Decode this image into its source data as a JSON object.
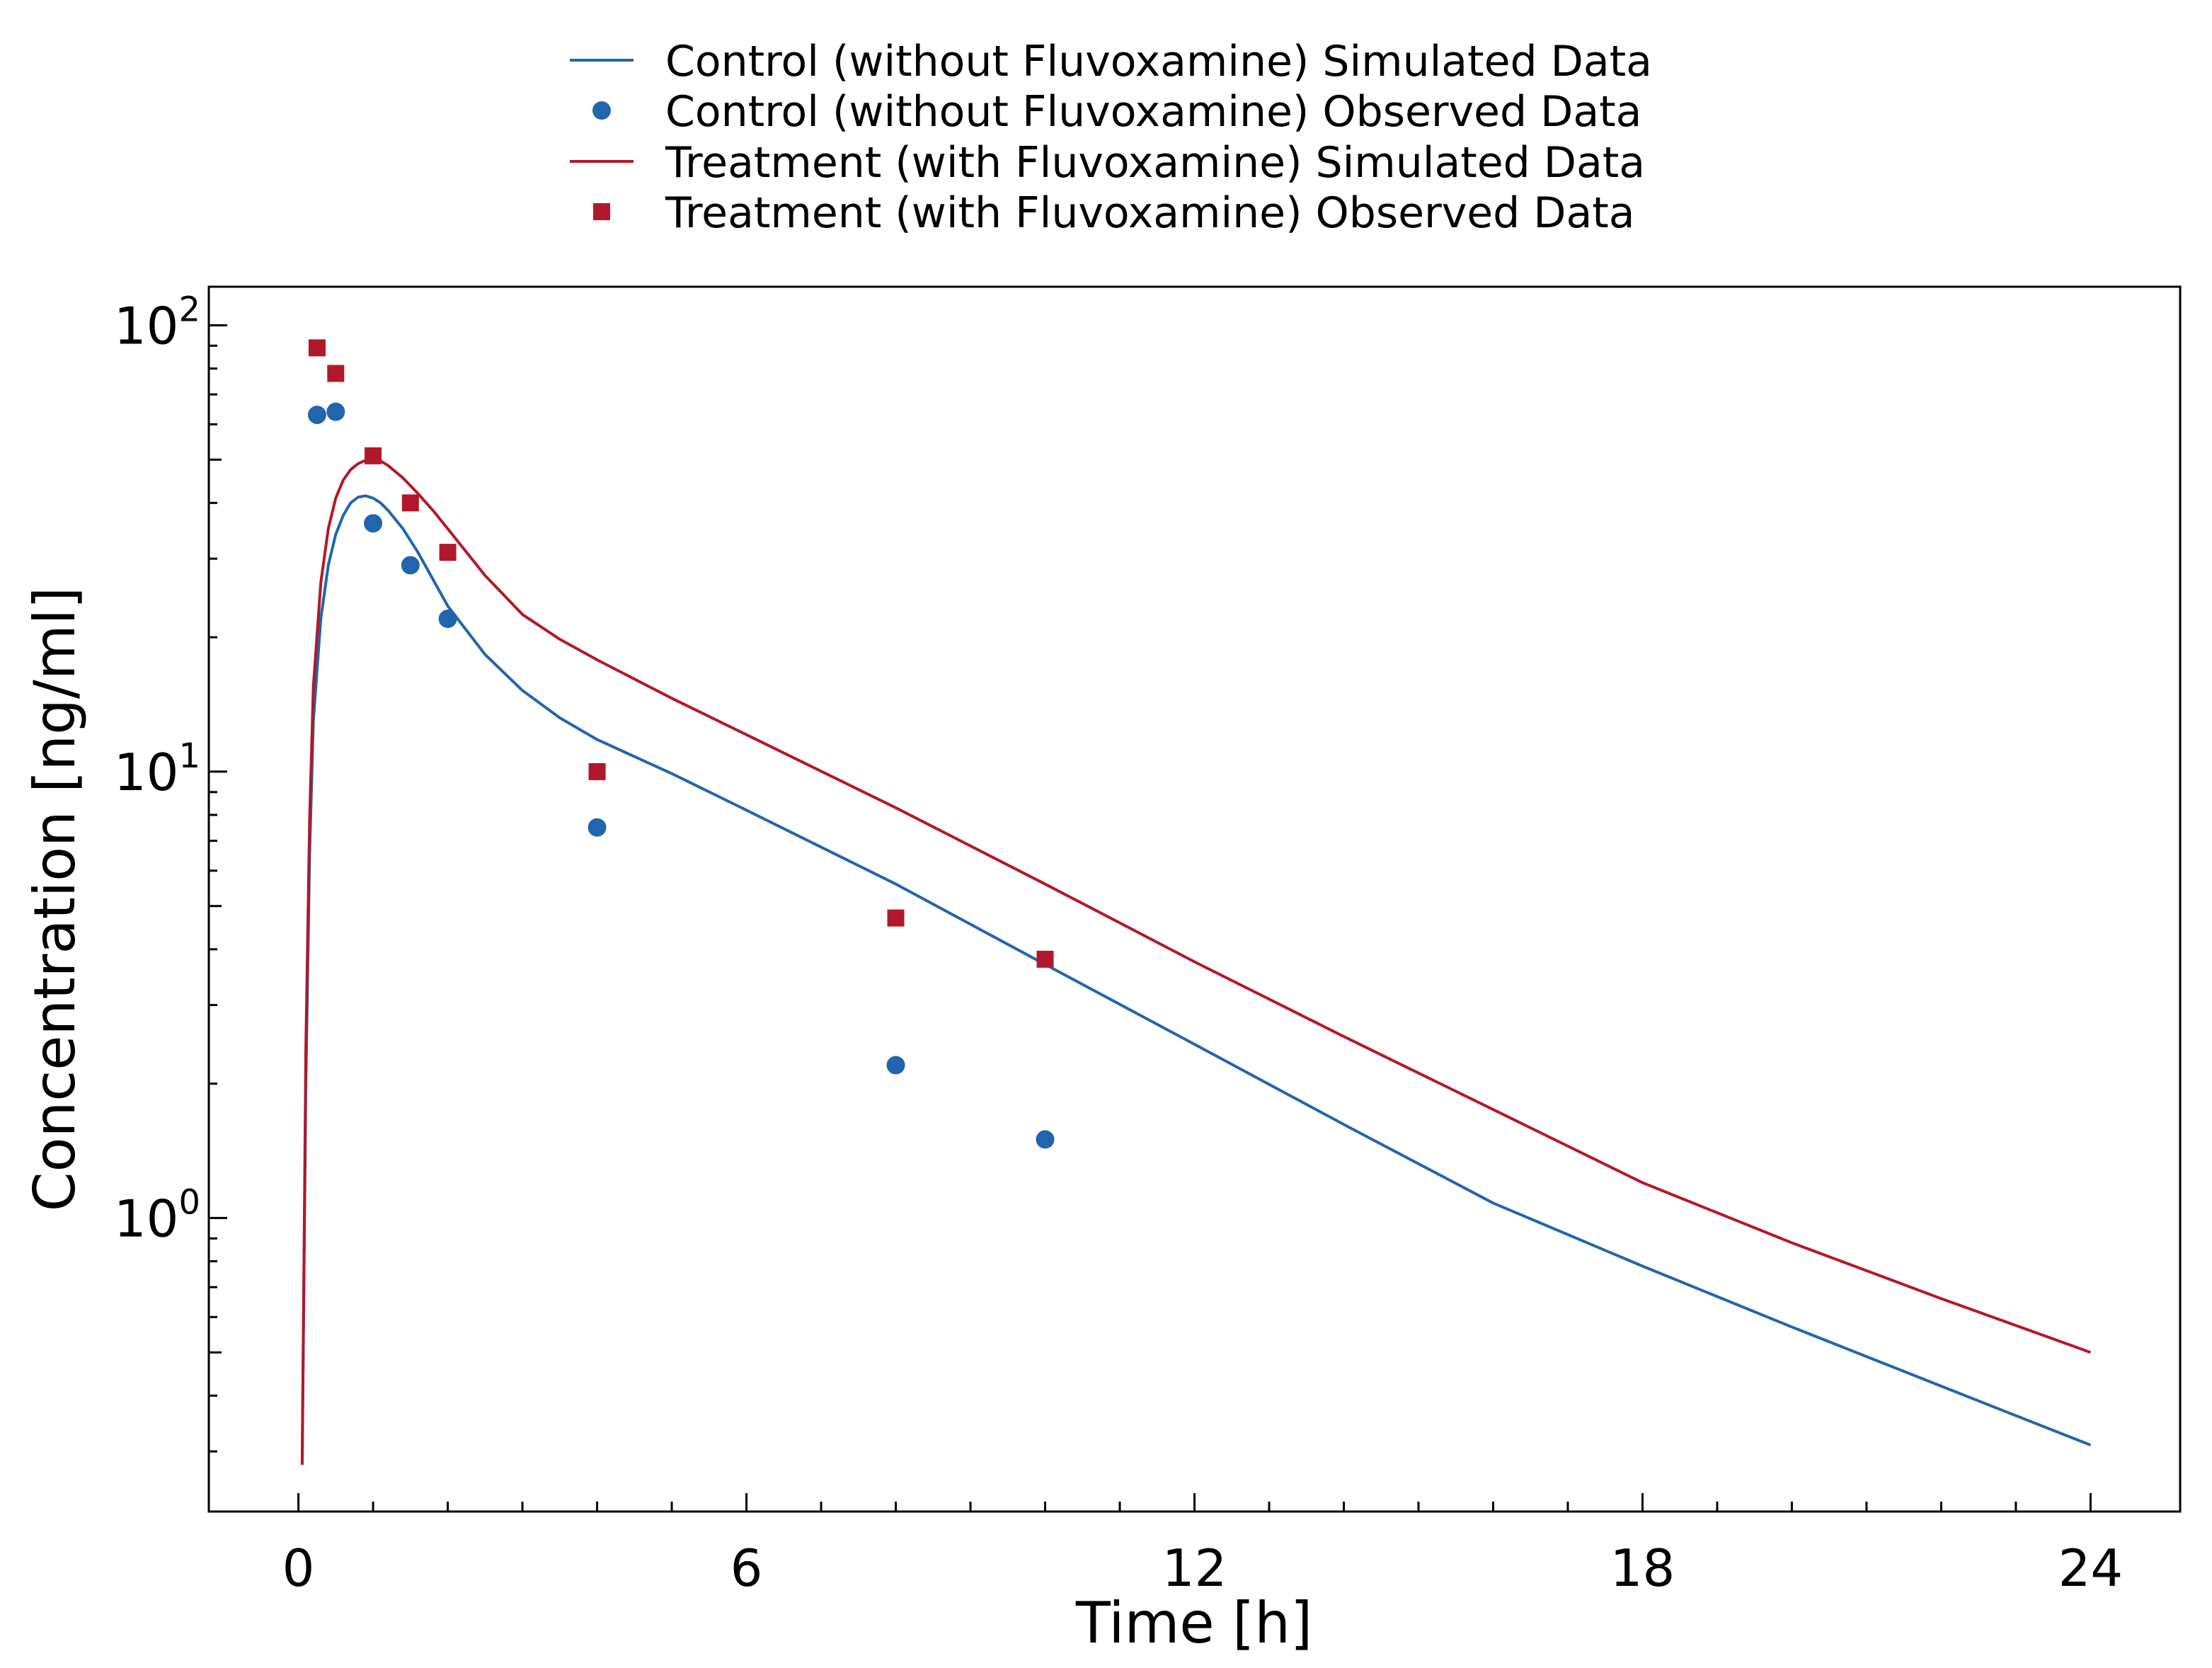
{
  "chart_data": {
    "type": "line",
    "xlabel": "Time [h]",
    "ylabel": "Concentration [ng/ml]",
    "xlim": [
      -1.2,
      25.2
    ],
    "ylim": [
      0.22,
      122
    ],
    "yscale": "log",
    "x_ticks": [
      0,
      6,
      12,
      18,
      24
    ],
    "y_ticks": [
      {
        "value": 1,
        "base": "10",
        "exp": "0"
      },
      {
        "value": 10,
        "base": "10",
        "exp": "1"
      },
      {
        "value": 100,
        "base": "10",
        "exp": "2"
      }
    ],
    "grid": false,
    "legend_position": "top-center",
    "series": [
      {
        "name": "Control (without Fluvoxamine) Simulated Data",
        "kind": "line",
        "color": "#2166ac",
        "x": [
          0.05,
          0.1,
          0.15,
          0.2,
          0.3,
          0.4,
          0.5,
          0.6,
          0.7,
          0.8,
          0.9,
          1.0,
          1.1,
          1.2,
          1.4,
          1.6,
          1.8,
          2.0,
          2.5,
          3.0,
          3.5,
          4.0,
          5.0,
          6.0,
          8.0,
          10.0,
          12.0,
          14.0,
          16.0,
          18.0,
          20.0,
          22.0,
          24.0
        ],
        "y": [
          0.28,
          2.0,
          6.5,
          13.0,
          22.0,
          29.0,
          34.0,
          37.5,
          40.0,
          41.2,
          41.5,
          41.0,
          40.0,
          38.5,
          35.0,
          31.0,
          27.0,
          23.5,
          18.3,
          15.2,
          13.2,
          11.8,
          9.9,
          8.2,
          5.6,
          3.7,
          2.45,
          1.62,
          1.08,
          0.78,
          0.57,
          0.42,
          0.31
        ]
      },
      {
        "name": "Control (without Fluvoxamine) Observed Data",
        "kind": "scatter",
        "marker": "circle",
        "color": "#2166ac",
        "x": [
          0.25,
          0.5,
          1.0,
          1.5,
          2.0,
          4.0,
          8.0,
          10.0
        ],
        "y": [
          63,
          64,
          36,
          29,
          22,
          7.5,
          2.2,
          1.5
        ]
      },
      {
        "name": "Treatment (with Fluvoxamine) Simulated Data",
        "kind": "line",
        "color": "#b2182b",
        "x": [
          0.05,
          0.1,
          0.15,
          0.2,
          0.3,
          0.4,
          0.5,
          0.6,
          0.7,
          0.8,
          0.9,
          1.0,
          1.1,
          1.2,
          1.4,
          1.6,
          1.8,
          2.0,
          2.5,
          3.0,
          3.5,
          4.0,
          5.0,
          6.0,
          8.0,
          10.0,
          12.0,
          14.0,
          16.0,
          18.0,
          20.0,
          22.0,
          24.0
        ],
        "y": [
          0.28,
          2.4,
          7.8,
          15.5,
          26.5,
          35.0,
          41.0,
          45.0,
          47.5,
          49.0,
          49.8,
          50.0,
          49.7,
          48.5,
          45.5,
          42.0,
          38.5,
          35.0,
          27.5,
          22.5,
          19.8,
          17.8,
          14.6,
          12.1,
          8.3,
          5.6,
          3.75,
          2.55,
          1.75,
          1.2,
          0.88,
          0.66,
          0.5
        ]
      },
      {
        "name": "Treatment (with Fluvoxamine) Observed Data",
        "kind": "scatter",
        "marker": "square",
        "color": "#b2182b",
        "x": [
          0.25,
          0.5,
          1.0,
          1.5,
          2.0,
          4.0,
          8.0,
          10.0
        ],
        "y": [
          89,
          78,
          51,
          40,
          31,
          10,
          4.7,
          3.8
        ]
      }
    ]
  }
}
